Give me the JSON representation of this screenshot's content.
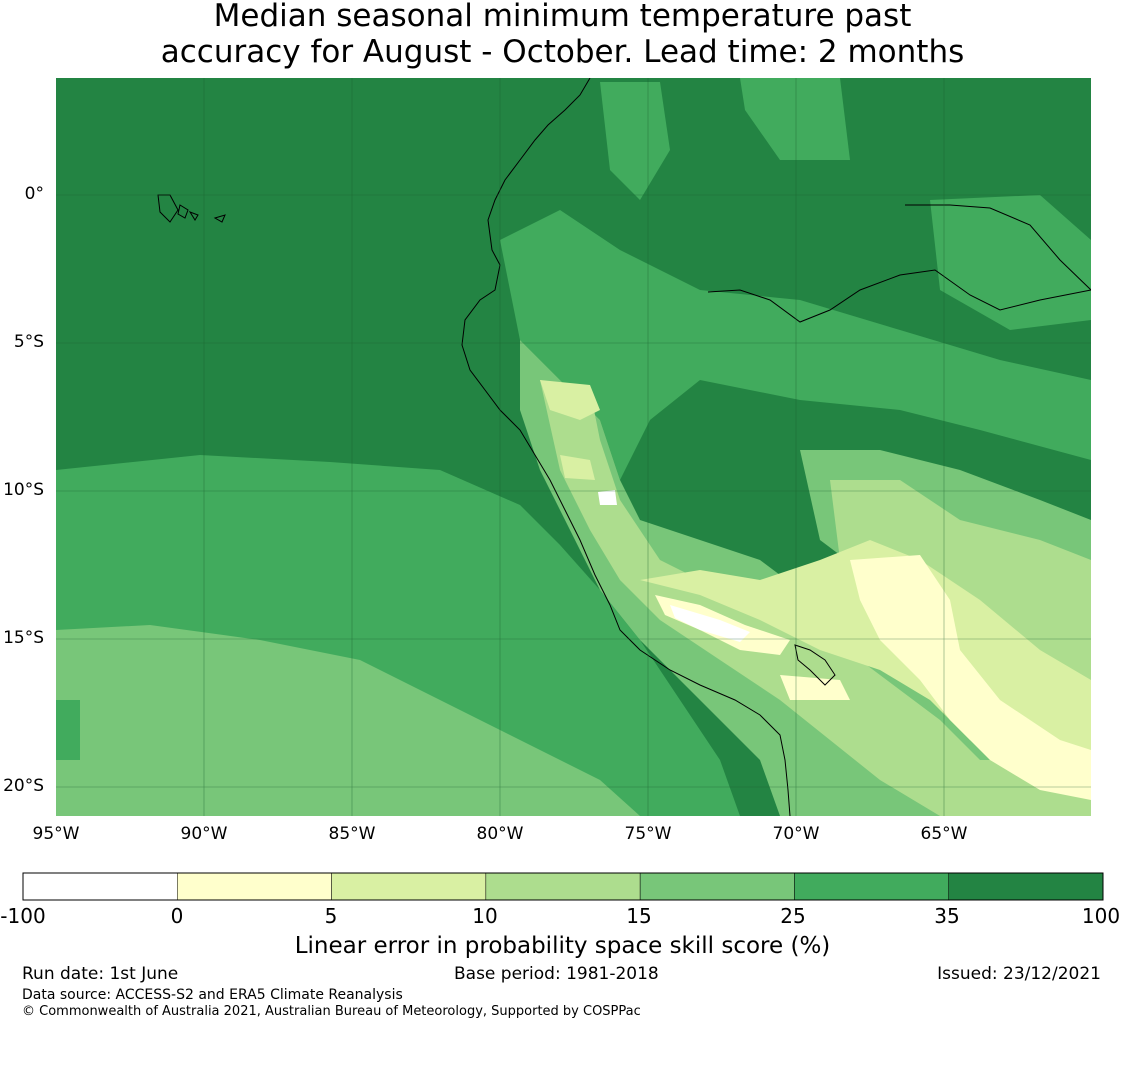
{
  "title": {
    "line1": "Median seasonal minimum temperature past",
    "line2": "accuracy for August - October. Lead time: 2 months"
  },
  "map": {
    "lat_ticks": [
      "0°",
      "5°S",
      "10°S",
      "15°S",
      "20°S"
    ],
    "lon_ticks": [
      "95°W",
      "90°W",
      "85°W",
      "80°W",
      "75°W",
      "70°W",
      "65°W"
    ],
    "extent": {
      "lon_min": -95,
      "lon_max": -60,
      "lat_min": -21,
      "lat_max": 4
    },
    "grid": true
  },
  "colorbar": {
    "label": "Linear error in probability space skill score (%)",
    "ticks": [
      "-100",
      "0",
      "5",
      "10",
      "15",
      "25",
      "35",
      "100"
    ],
    "colors": [
      "#ffffff",
      "#ffffcc",
      "#d9f0a3",
      "#addd8e",
      "#78c679",
      "#41ab5d",
      "#238443"
    ]
  },
  "footer": {
    "run_date": "Run date: 1st June",
    "base_period": "Base period: 1981-2018",
    "issued": "Issued: 23/12/2021",
    "data_source": "Data source: ACCESS-S2 and ERA5 Climate Reanalysis",
    "copyright": "© Commonwealth of Australia 2021, Australian Bureau of Meteorology, Supported by COSPPac"
  }
}
